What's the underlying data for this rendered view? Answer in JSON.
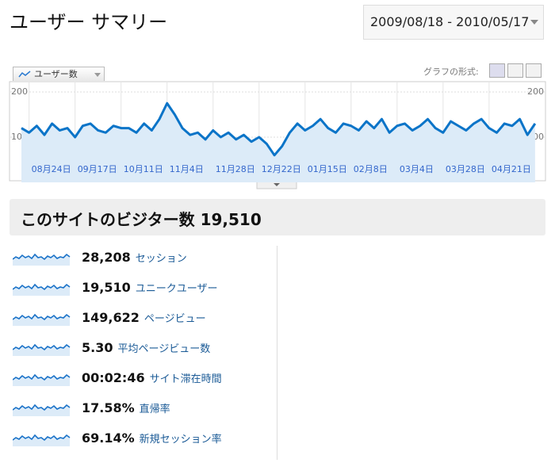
{
  "header": {
    "title": "ユーザー サマリー",
    "date_range": "2009/08/18 - 2010/05/17"
  },
  "chart_controls": {
    "graph_format_label": "グラフの形式:"
  },
  "chart_data": {
    "type": "line",
    "categories": [
      null,
      "08月24日",
      null,
      null,
      null,
      null,
      null,
      "09月17日",
      null,
      null,
      null,
      null,
      null,
      "10月11日",
      null,
      null,
      null,
      null,
      null,
      "11月4日",
      null,
      null,
      null,
      null,
      null,
      "11月28日",
      null,
      null,
      null,
      null,
      null,
      "12月22日",
      null,
      null,
      null,
      null,
      null,
      "01月15日",
      null,
      null,
      null,
      null,
      null,
      "02月8日",
      null,
      null,
      null,
      null,
      null,
      "03月4日",
      null,
      null,
      null,
      null,
      null,
      "03月28日",
      null,
      null,
      null,
      null,
      null,
      "04月21日",
      null,
      null,
      null,
      null,
      null,
      null
    ],
    "series": [
      {
        "name": "ユーザー数",
        "color": "#0b74c8",
        "values": [
          120,
          110,
          125,
          105,
          130,
          115,
          120,
          100,
          125,
          130,
          115,
          110,
          125,
          120,
          120,
          110,
          130,
          115,
          140,
          175,
          150,
          120,
          105,
          110,
          95,
          115,
          100,
          110,
          95,
          105,
          90,
          100,
          85,
          60,
          80,
          110,
          130,
          115,
          125,
          140,
          120,
          110,
          130,
          125,
          115,
          135,
          120,
          140,
          110,
          125,
          130,
          115,
          125,
          140,
          120,
          110,
          135,
          125,
          115,
          130,
          140,
          120,
          110,
          130,
          125,
          140,
          105,
          130
        ]
      }
    ],
    "ylim": [
      0,
      200
    ],
    "yticks": [
      100,
      200
    ],
    "grid": true
  },
  "summary": {
    "title": "このサイトのビジター数",
    "value": "19,510"
  },
  "metrics": [
    {
      "value": "28,208",
      "label": "セッション"
    },
    {
      "value": "19,510",
      "label": "ユニークユーザー"
    },
    {
      "value": "149,622",
      "label": "ページビュー"
    },
    {
      "value": "5.30",
      "label": "平均ページビュー数"
    },
    {
      "value": "00:02:46",
      "label": "サイト滞在時間"
    },
    {
      "value": "17.58%",
      "label": "直帰率"
    },
    {
      "value": "69.14%",
      "label": "新規セッション率"
    }
  ]
}
